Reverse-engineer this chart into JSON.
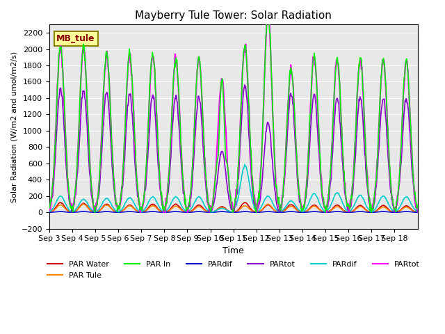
{
  "title": "Mayberry Tule Tower: Solar Radiation",
  "xlabel": "Time",
  "ylabel": "Solar Radiation (W/m2 and umol/m2/s)",
  "ylim": [
    -200,
    2300
  ],
  "yticks": [
    -200,
    0,
    200,
    400,
    600,
    800,
    1000,
    1200,
    1400,
    1600,
    1800,
    2000,
    2200
  ],
  "xtick_labels": [
    "Sep 3",
    "Sep 4",
    "Sep 5",
    "Sep 6",
    "Sep 7",
    "Sep 8",
    "Sep 9",
    "Sep 10",
    "Sep 11",
    "Sep 12",
    "Sep 13",
    "Sep 14",
    "Sep 15",
    "Sep 16",
    "Sep 17",
    "Sep 18"
  ],
  "background_color": "#e8e8e8",
  "legend_box_text": "MB_tule",
  "legend_box_color": "#ffff99",
  "legend_box_border": "#8B8000",
  "series": [
    {
      "name": "PAR Water",
      "color": "#cc0000",
      "lw": 1.2
    },
    {
      "name": "PAR Tule",
      "color": "#ff8800",
      "lw": 1.2
    },
    {
      "name": "PAR In",
      "color": "#00ee00",
      "lw": 1.2
    },
    {
      "name": "PARdif",
      "color": "#0000cc",
      "lw": 1.2
    },
    {
      "name": "PARtot",
      "color": "#8800cc",
      "lw": 1.2
    },
    {
      "name": "PARdif",
      "color": "#00cccc",
      "lw": 1.2
    },
    {
      "name": "PARtot",
      "color": "#ff00ff",
      "lw": 1.5
    }
  ],
  "par_in_peaks": [
    2050,
    2020,
    1950,
    1950,
    1940,
    1900,
    1880,
    1630,
    2050,
    2440,
    1760,
    1920,
    1880,
    1900,
    1880,
    1870
  ],
  "par_tot_peaks": [
    1520,
    1490,
    1460,
    1460,
    1440,
    1430,
    1410,
    750,
    1570,
    1100,
    1450,
    1450,
    1410,
    1400,
    1400,
    1400
  ],
  "par_water_peaks": [
    120,
    110,
    100,
    90,
    100,
    100,
    90,
    70,
    120,
    90,
    95,
    90,
    90,
    85,
    85,
    80
  ],
  "par_tule_peaks": [
    90,
    100,
    90,
    80,
    80,
    75,
    70,
    60,
    80,
    100,
    75,
    75,
    70,
    70,
    65,
    65
  ],
  "par_dif1_peaks": [
    10,
    10,
    10,
    10,
    10,
    10,
    10,
    10,
    10,
    10,
    10,
    10,
    10,
    10,
    10,
    10
  ],
  "par_dif2_peaks": [
    200,
    160,
    170,
    180,
    190,
    190,
    190,
    50,
    570,
    200,
    140,
    230,
    240,
    210,
    200,
    190
  ]
}
